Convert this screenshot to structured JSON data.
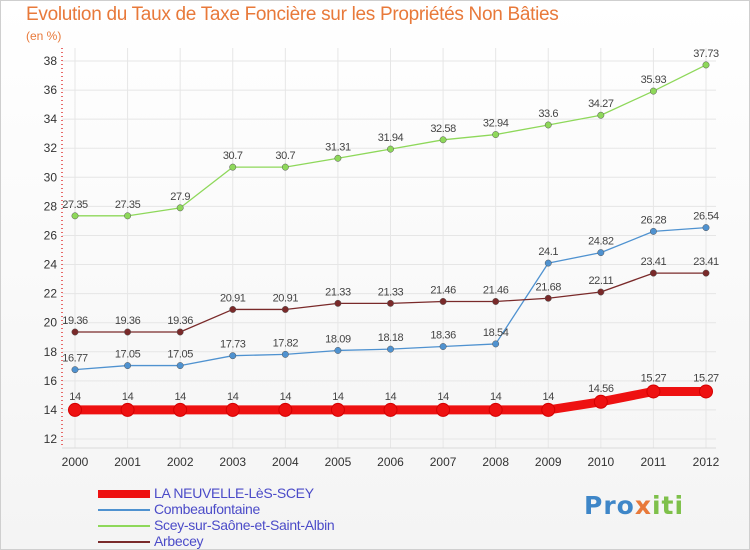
{
  "header": {
    "title": "Evolution du Taux de Taxe Foncière sur les Propriétés Non Bâties",
    "unit": "(en %)"
  },
  "brand": {
    "part1": "Pro",
    "part2": "x",
    "part3": "iti"
  },
  "chart_data": {
    "type": "line",
    "title": "Evolution du Taux de Taxe Foncière sur les Propriétés Non Bâties",
    "ylabel": "(en %)",
    "xlabel": "",
    "ylim": [
      12,
      38
    ],
    "yticks": [
      12,
      14,
      16,
      18,
      20,
      22,
      24,
      26,
      28,
      30,
      32,
      34,
      36,
      38
    ],
    "x": [
      "2000",
      "2001",
      "2002",
      "2003",
      "2004",
      "2005",
      "2006",
      "2007",
      "2008",
      "2009",
      "2010",
      "2011",
      "2012"
    ],
    "grid": true,
    "legend": "bottom-left",
    "series": [
      {
        "name": "LA NEUVELLE-LèS-SCEY",
        "color": "#ee1111",
        "highlight": true,
        "values": [
          14,
          14,
          14,
          14,
          14,
          14,
          14,
          14,
          14,
          14,
          14.56,
          15.27,
          15.27
        ],
        "labels": [
          "14",
          "14",
          "14",
          "14",
          "14",
          "14",
          "14",
          "14",
          "14",
          "14",
          "14.56",
          "15.27",
          "15.27"
        ]
      },
      {
        "name": "Combeaufontaine",
        "color": "#4f92d0",
        "values": [
          16.77,
          17.05,
          17.05,
          17.73,
          17.82,
          18.09,
          18.18,
          18.36,
          18.54,
          24.1,
          24.82,
          26.28,
          26.54
        ],
        "labels": [
          "16.77",
          "17.05",
          "17.05",
          "17.73",
          "17.82",
          "18.09",
          "18.18",
          "18.36",
          "18.54",
          "24.1",
          "24.82",
          "26.28",
          "26.54"
        ]
      },
      {
        "name": "Scey-sur-Saône-et-Saint-Albin",
        "color": "#8ed85a",
        "values": [
          27.35,
          27.35,
          27.9,
          30.7,
          30.7,
          31.31,
          31.94,
          32.58,
          32.94,
          33.6,
          34.27,
          35.93,
          37.73
        ],
        "labels": [
          "27.35",
          "27.35",
          "27.9",
          "30.7",
          "30.7",
          "31.31",
          "31.94",
          "32.58",
          "32.94",
          "33.6",
          "34.27",
          "35.93",
          "37.73"
        ]
      },
      {
        "name": "Arbecey",
        "color": "#7a2a2a",
        "values": [
          19.36,
          19.36,
          19.36,
          20.91,
          20.91,
          21.33,
          21.33,
          21.46,
          21.46,
          21.68,
          22.11,
          23.41,
          23.41
        ],
        "labels": [
          "19.36",
          "19.36",
          "19.36",
          "20.91",
          "20.91",
          "21.33",
          "21.33",
          "21.46",
          "21.46",
          "21.68",
          "22.11",
          "23.41",
          "23.41"
        ]
      }
    ]
  }
}
